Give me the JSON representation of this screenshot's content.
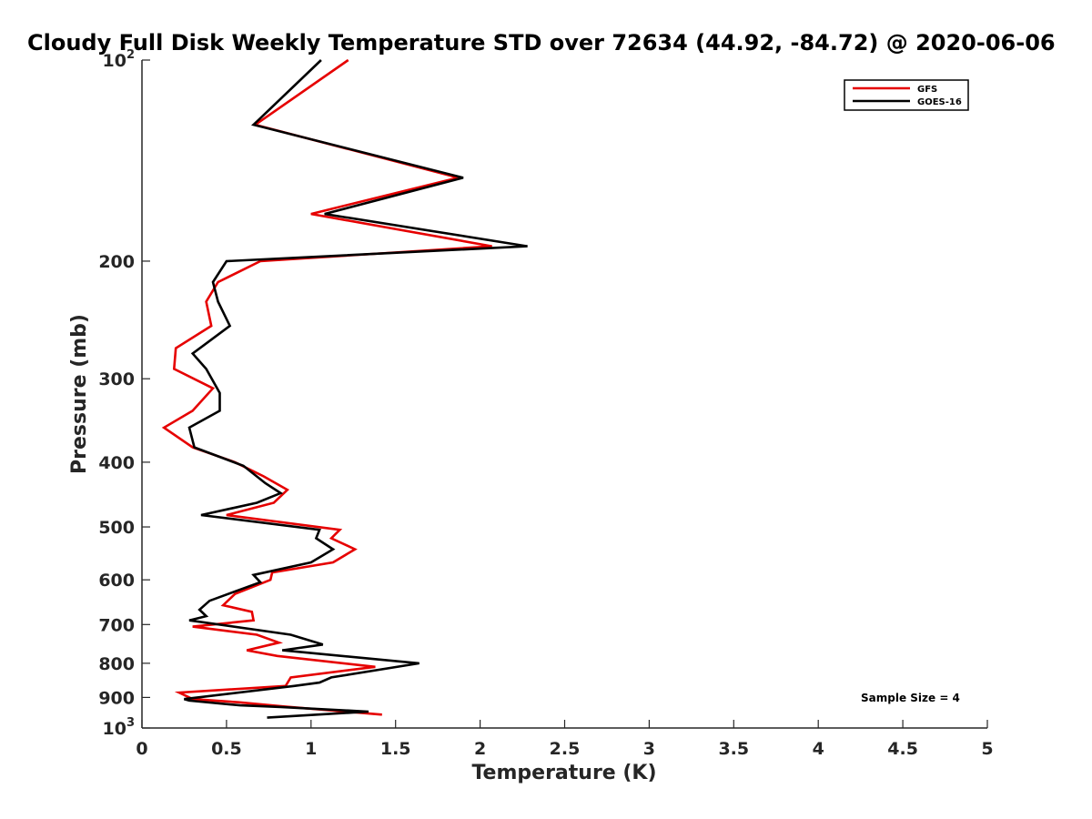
{
  "chart_data": {
    "type": "line",
    "title": "Cloudy Full Disk Weekly Temperature STD over 72634 (44.92, -84.72) @ 2020-06-06",
    "xlabel": "Temperature (K)",
    "ylabel": "Pressure (mb)",
    "xlim": [
      0,
      5
    ],
    "ylim": [
      100,
      1000
    ],
    "y_scale": "log",
    "y_reversed": true,
    "x_ticks": [
      "0",
      "0.5",
      "1",
      "1.5",
      "2",
      "2.5",
      "3",
      "3.5",
      "4",
      "4.5",
      "5"
    ],
    "y_ticks": [
      {
        "value": 100,
        "base": "10",
        "exp": "2"
      },
      {
        "value": 200,
        "label": "200"
      },
      {
        "value": 300,
        "label": "300"
      },
      {
        "value": 400,
        "label": "400"
      },
      {
        "value": 500,
        "label": "500"
      },
      {
        "value": 600,
        "label": "600"
      },
      {
        "value": 700,
        "label": "700"
      },
      {
        "value": 800,
        "label": "800"
      },
      {
        "value": 900,
        "label": "900"
      },
      {
        "value": 1000,
        "base": "10",
        "exp": "3"
      }
    ],
    "grid": false,
    "legend_position": "top-right",
    "annotation": "Sample Size = 4",
    "series": [
      {
        "name": "GFS",
        "color": "#e60000",
        "points": [
          [
            1.22,
            100
          ],
          [
            0.67,
            125
          ],
          [
            1.87,
            150
          ],
          [
            1.0,
            170
          ],
          [
            2.07,
            190
          ],
          [
            0.7,
            200
          ],
          [
            0.45,
            215
          ],
          [
            0.38,
            230
          ],
          [
            0.41,
            250
          ],
          [
            0.2,
            270
          ],
          [
            0.19,
            290
          ],
          [
            0.42,
            310
          ],
          [
            0.3,
            335
          ],
          [
            0.13,
            355
          ],
          [
            0.3,
            380
          ],
          [
            0.55,
            400
          ],
          [
            0.72,
            420
          ],
          [
            0.86,
            440
          ],
          [
            0.78,
            460
          ],
          [
            0.5,
            480
          ],
          [
            1.17,
            505
          ],
          [
            1.12,
            520
          ],
          [
            1.26,
            540
          ],
          [
            1.13,
            565
          ],
          [
            0.77,
            585
          ],
          [
            0.76,
            600
          ],
          [
            0.55,
            630
          ],
          [
            0.48,
            655
          ],
          [
            0.65,
            670
          ],
          [
            0.66,
            690
          ],
          [
            0.3,
            705
          ],
          [
            0.68,
            725
          ],
          [
            0.81,
            745
          ],
          [
            0.62,
            765
          ],
          [
            0.8,
            780
          ],
          [
            1.38,
            810
          ],
          [
            0.88,
            840
          ],
          [
            0.85,
            865
          ],
          [
            0.22,
            885
          ],
          [
            0.3,
            905
          ],
          [
            0.57,
            915
          ],
          [
            0.83,
            928
          ],
          [
            1.42,
            955
          ]
        ]
      },
      {
        "name": "GOES-16",
        "color": "#000000",
        "points": [
          [
            1.06,
            100
          ],
          [
            0.66,
            125
          ],
          [
            1.9,
            150
          ],
          [
            1.08,
            170
          ],
          [
            2.28,
            190
          ],
          [
            0.5,
            200
          ],
          [
            0.42,
            215
          ],
          [
            0.45,
            230
          ],
          [
            0.52,
            250
          ],
          [
            0.3,
            275
          ],
          [
            0.38,
            290
          ],
          [
            0.46,
            315
          ],
          [
            0.46,
            335
          ],
          [
            0.28,
            355
          ],
          [
            0.31,
            380
          ],
          [
            0.6,
            405
          ],
          [
            0.73,
            430
          ],
          [
            0.82,
            445
          ],
          [
            0.68,
            460
          ],
          [
            0.35,
            480
          ],
          [
            1.05,
            505
          ],
          [
            1.03,
            520
          ],
          [
            1.13,
            540
          ],
          [
            1.0,
            565
          ],
          [
            0.66,
            590
          ],
          [
            0.7,
            605
          ],
          [
            0.4,
            645
          ],
          [
            0.34,
            665
          ],
          [
            0.38,
            680
          ],
          [
            0.28,
            690
          ],
          [
            0.88,
            725
          ],
          [
            1.07,
            750
          ],
          [
            0.83,
            765
          ],
          [
            1.64,
            800
          ],
          [
            1.12,
            840
          ],
          [
            1.05,
            855
          ],
          [
            0.9,
            865
          ],
          [
            0.25,
            905
          ],
          [
            0.28,
            910
          ],
          [
            0.58,
            925
          ],
          [
            0.82,
            930
          ],
          [
            1.34,
            945
          ],
          [
            0.74,
            965
          ]
        ]
      }
    ]
  }
}
